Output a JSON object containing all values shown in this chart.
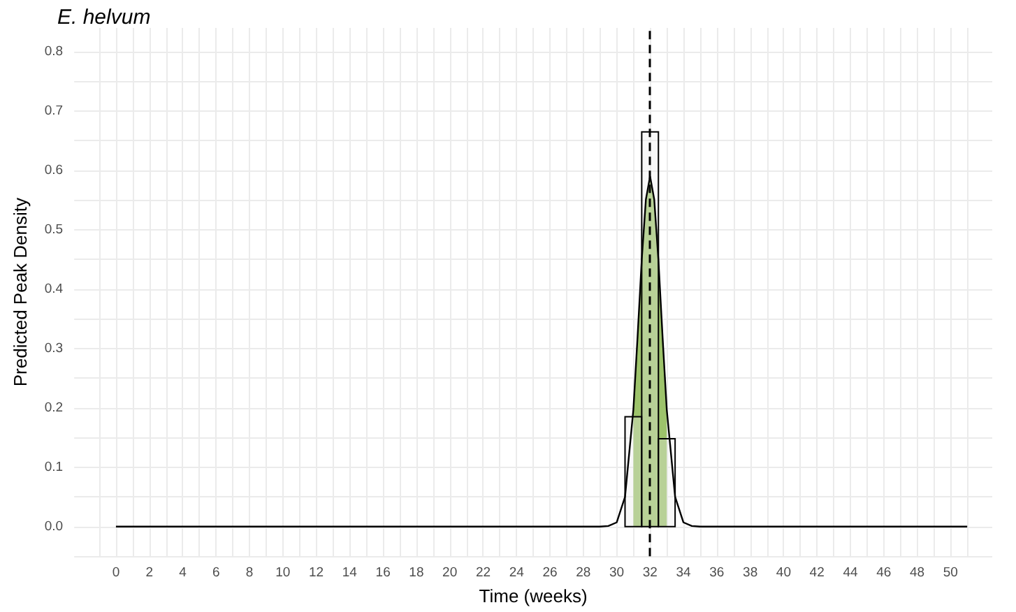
{
  "chart_data": {
    "type": "histogram",
    "title": "E. helvum",
    "xlabel": "Time (weeks)",
    "ylabel": "Predicted Peak Density",
    "bins": [
      30.5,
      31.5,
      32.5,
      33.5
    ],
    "values": [
      0.185,
      0.665,
      0.148
    ],
    "color": "#ebebeb",
    "series": [
      {
        "type": "area",
        "color": "#9dc36b",
        "x": [
          31,
          31.25,
          31.5,
          31.75,
          32,
          32.25,
          32.5,
          32.75,
          33
        ],
        "values": [
          0.197,
          0.319,
          0.449,
          0.551,
          0.59,
          0.551,
          0.449,
          0.319,
          0.197
        ]
      },
      {
        "type": "line",
        "color": "#000000",
        "x": [
          0,
          29,
          29.5,
          30,
          30.5,
          31,
          31.25,
          31.5,
          31.75,
          32,
          32.25,
          32.5,
          32.75,
          33,
          33.5,
          34,
          34.5,
          35,
          51
        ],
        "values": [
          0,
          0,
          0.001,
          0.007,
          0.05,
          0.197,
          0.319,
          0.449,
          0.551,
          0.59,
          0.551,
          0.449,
          0.319,
          0.197,
          0.05,
          0.007,
          0.001,
          0,
          0
        ]
      }
    ],
    "ref_lines": [
      {
        "axis": "x",
        "value": 32,
        "color": "#000000",
        "line_style": "dashed"
      }
    ],
    "xlim": [
      -2.5,
      52.5
    ],
    "xticks": [
      0,
      2,
      4,
      6,
      8,
      10,
      12,
      14,
      16,
      18,
      20,
      22,
      24,
      26,
      28,
      30,
      32,
      34,
      36,
      38,
      40,
      42,
      44,
      46,
      48,
      50
    ],
    "ylim": [
      -0.05,
      0.84
    ],
    "yticks": [
      {
        "value": 0,
        "label": "0.0"
      },
      0.1,
      0.2,
      0.3,
      0.4,
      0.5,
      0.6,
      0.7,
      0.8
    ],
    "grid": true
  }
}
